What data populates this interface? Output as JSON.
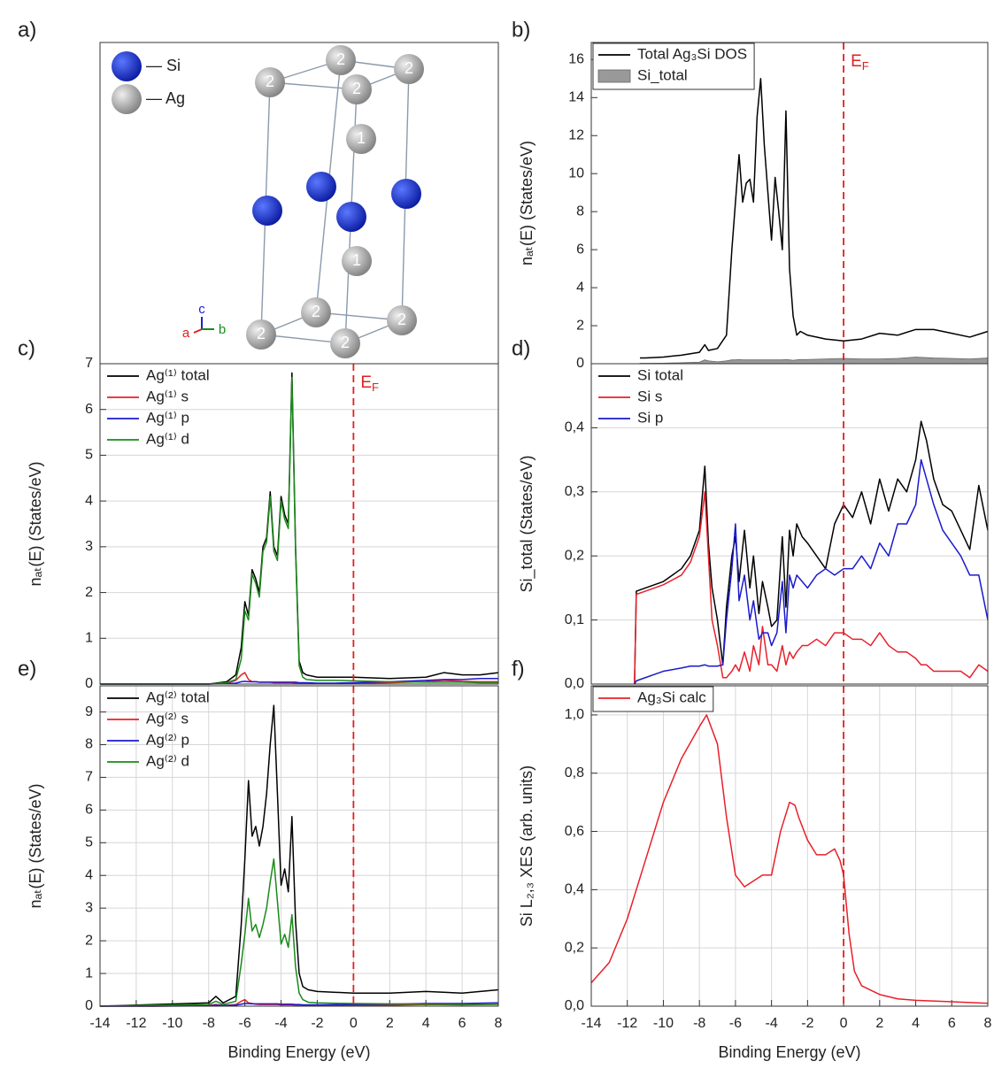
{
  "structure": {
    "label": "a)",
    "legend": [
      "— Si",
      "— Ag"
    ],
    "atom_labels": [
      "2",
      "2",
      "2",
      "2",
      "1",
      "1",
      "2",
      "2",
      "2",
      "2"
    ],
    "axes": [
      "c",
      "a",
      "b"
    ]
  },
  "chart_data": [
    {
      "type": "line",
      "panel_label": "b)",
      "ylabel": "nₐₜ(E) (States/eV)",
      "xlim": [
        -14,
        8
      ],
      "ylim": [
        0,
        16.9
      ],
      "yticks": [
        0,
        2,
        4,
        6,
        8,
        10,
        12,
        14,
        16
      ],
      "grid": false,
      "vline": {
        "x": 0,
        "color": "#e02020"
      },
      "annotation": {
        "text": "E",
        "subscript": "F",
        "color": "#e02020"
      },
      "legend": {
        "corner": "top-left",
        "frame": true
      },
      "x": [
        -11.3,
        -11,
        -10,
        -9,
        -8,
        -7.7,
        -7.5,
        -7,
        -6.5,
        -6.2,
        -6,
        -5.8,
        -5.6,
        -5.4,
        -5.2,
        -5,
        -4.8,
        -4.6,
        -4.4,
        -4.2,
        -4,
        -3.8,
        -3.6,
        -3.4,
        -3.2,
        -3,
        -2.8,
        -2.6,
        -2.4,
        -2,
        -1,
        0,
        1,
        2,
        3,
        4,
        5,
        6,
        7,
        8
      ],
      "series": [
        {
          "name": "Total Ag₃Si DOS",
          "color": "#000000",
          "values": [
            0.3,
            0.3,
            0.35,
            0.45,
            0.6,
            1.0,
            0.7,
            0.8,
            1.5,
            6,
            8.5,
            11,
            8.5,
            9.5,
            9.7,
            8.5,
            13,
            15,
            11.5,
            9,
            6.5,
            9.8,
            8,
            6,
            13.3,
            5,
            2.5,
            1.5,
            1.7,
            1.5,
            1.3,
            1.2,
            1.3,
            1.6,
            1.5,
            1.8,
            1.8,
            1.6,
            1.4,
            1.7
          ]
        },
        {
          "name": "Si_total",
          "color": "#999999",
          "fill": true,
          "values": [
            0.02,
            0.02,
            0.03,
            0.05,
            0.08,
            0.2,
            0.15,
            0.1,
            0.15,
            0.2,
            0.2,
            0.22,
            0.2,
            0.2,
            0.2,
            0.2,
            0.2,
            0.2,
            0.2,
            0.2,
            0.2,
            0.2,
            0.2,
            0.2,
            0.22,
            0.2,
            0.18,
            0.2,
            0.22,
            0.22,
            0.25,
            0.28,
            0.25,
            0.25,
            0.28,
            0.35,
            0.3,
            0.28,
            0.25,
            0.3
          ]
        }
      ]
    },
    {
      "type": "line",
      "panel_label": "c)",
      "ylabel": "nₐₜ(E) (States/eV)",
      "xlim": [
        -14,
        8
      ],
      "ylim": [
        0,
        7
      ],
      "yticks": [
        0,
        1,
        2,
        3,
        4,
        5,
        6,
        7
      ],
      "grid": true,
      "vline": {
        "x": 0,
        "color": "#e02020"
      },
      "annotation": {
        "text": "E",
        "subscript": "F",
        "color": "#e02020"
      },
      "legend": {
        "corner": "top-left",
        "frame": false
      },
      "x": [
        -14,
        -8,
        -7,
        -6.5,
        -6.2,
        -6,
        -5.8,
        -5.6,
        -5.4,
        -5.2,
        -5,
        -4.8,
        -4.6,
        -4.4,
        -4.2,
        -4,
        -3.8,
        -3.6,
        -3.4,
        -3.2,
        -3,
        -2.8,
        -2.6,
        -2,
        -1,
        0,
        2,
        4,
        5,
        6,
        7,
        8
      ],
      "series": [
        {
          "name": "Ag⁽¹⁾ total",
          "color": "#000000",
          "values": [
            0,
            0,
            0.05,
            0.2,
            0.8,
            1.8,
            1.5,
            2.5,
            2.3,
            2,
            3,
            3.2,
            4.2,
            3,
            2.8,
            4.1,
            3.7,
            3.5,
            6.8,
            3,
            0.5,
            0.25,
            0.2,
            0.15,
            0.15,
            0.15,
            0.12,
            0.15,
            0.25,
            0.2,
            0.2,
            0.25
          ]
        },
        {
          "name": "Ag⁽¹⁾ s",
          "color": "#e8202a",
          "values": [
            0,
            0,
            0.02,
            0.08,
            0.2,
            0.25,
            0.1,
            0.05,
            0.05,
            0.04,
            0.04,
            0.04,
            0.04,
            0.03,
            0.03,
            0.03,
            0.03,
            0.03,
            0.03,
            0.02,
            0.02,
            0.02,
            0.02,
            0.01,
            0.01,
            0.02,
            0.03,
            0.05,
            0.08,
            0.06,
            0.05,
            0.05
          ]
        },
        {
          "name": "Ag⁽¹⁾ p",
          "color": "#1a1acc",
          "values": [
            0,
            0,
            0.01,
            0.02,
            0.05,
            0.06,
            0.05,
            0.05,
            0.05,
            0.04,
            0.04,
            0.04,
            0.04,
            0.04,
            0.04,
            0.04,
            0.04,
            0.04,
            0.04,
            0.04,
            0.03,
            0.03,
            0.03,
            0.02,
            0.02,
            0.03,
            0.05,
            0.08,
            0.1,
            0.1,
            0.12,
            0.12
          ]
        },
        {
          "name": "Ag⁽¹⁾ d",
          "color": "#1a8a1a",
          "values": [
            0,
            0,
            0.03,
            0.1,
            0.55,
            1.6,
            1.4,
            2.4,
            2.2,
            1.9,
            2.9,
            3.1,
            4.1,
            2.9,
            2.7,
            4,
            3.6,
            3.4,
            6.7,
            2.9,
            0.4,
            0.15,
            0.1,
            0.08,
            0.08,
            0.07,
            0.05,
            0.04,
            0.04,
            0.04,
            0.03,
            0.03
          ]
        }
      ]
    },
    {
      "type": "line",
      "panel_label": "d)",
      "ylabel": "Si_total (States/eV)",
      "xlim": [
        -14,
        8
      ],
      "ylim": [
        0,
        0.5
      ],
      "yticks": [
        {
          "value": 0,
          "label": "0,0"
        },
        {
          "value": 0.1,
          "label": "0,1"
        },
        {
          "value": 0.2,
          "label": "0,2"
        },
        {
          "value": 0.3,
          "label": "0,3"
        },
        {
          "value": 0.4,
          "label": "0,4"
        }
      ],
      "grid": true,
      "vline": {
        "x": 0,
        "color": "#e02020"
      },
      "legend": {
        "corner": "top-left",
        "frame": false
      },
      "x": [
        -11.6,
        -11.5,
        -11,
        -10,
        -9,
        -8.5,
        -8,
        -7.7,
        -7.5,
        -7.3,
        -7,
        -6.7,
        -6.5,
        -6.2,
        -6,
        -5.8,
        -5.5,
        -5.2,
        -5,
        -4.7,
        -4.5,
        -4.2,
        -4,
        -3.7,
        -3.4,
        -3.2,
        -3,
        -2.8,
        -2.6,
        -2.3,
        -2,
        -1.5,
        -1,
        -0.5,
        0,
        0.5,
        1,
        1.5,
        2,
        2.5,
        3,
        3.5,
        4,
        4.3,
        4.6,
        5,
        5.5,
        6,
        6.5,
        7,
        7.5,
        8
      ],
      "series": [
        {
          "name": "Si total",
          "color": "#000000",
          "values": [
            0,
            0.145,
            0.15,
            0.16,
            0.18,
            0.2,
            0.24,
            0.34,
            0.22,
            0.15,
            0.1,
            0.03,
            0.12,
            0.2,
            0.23,
            0.16,
            0.24,
            0.15,
            0.2,
            0.11,
            0.16,
            0.12,
            0.09,
            0.1,
            0.23,
            0.12,
            0.24,
            0.2,
            0.25,
            0.23,
            0.22,
            0.2,
            0.18,
            0.25,
            0.28,
            0.26,
            0.3,
            0.25,
            0.32,
            0.27,
            0.32,
            0.3,
            0.35,
            0.41,
            0.38,
            0.32,
            0.28,
            0.27,
            0.24,
            0.21,
            0.31,
            0.24
          ]
        },
        {
          "name": "Si s",
          "color": "#e8202a",
          "values": [
            0,
            0.14,
            0.145,
            0.155,
            0.17,
            0.19,
            0.23,
            0.3,
            0.2,
            0.1,
            0.06,
            0.01,
            0.01,
            0.02,
            0.03,
            0.02,
            0.05,
            0.02,
            0.06,
            0.03,
            0.09,
            0.03,
            0.03,
            0.02,
            0.06,
            0.03,
            0.05,
            0.04,
            0.05,
            0.06,
            0.06,
            0.07,
            0.06,
            0.08,
            0.08,
            0.07,
            0.07,
            0.06,
            0.08,
            0.06,
            0.05,
            0.05,
            0.04,
            0.03,
            0.03,
            0.02,
            0.02,
            0.02,
            0.02,
            0.01,
            0.03,
            0.02
          ]
        },
        {
          "name": "Si p",
          "color": "#1a1acc",
          "values": [
            0,
            0.005,
            0.01,
            0.02,
            0.025,
            0.028,
            0.028,
            0.03,
            0.028,
            0.028,
            0.028,
            0.03,
            0.1,
            0.18,
            0.25,
            0.13,
            0.17,
            0.1,
            0.13,
            0.07,
            0.08,
            0.08,
            0.06,
            0.08,
            0.16,
            0.08,
            0.17,
            0.15,
            0.17,
            0.16,
            0.15,
            0.17,
            0.18,
            0.17,
            0.18,
            0.18,
            0.2,
            0.18,
            0.22,
            0.2,
            0.25,
            0.25,
            0.28,
            0.35,
            0.32,
            0.28,
            0.24,
            0.22,
            0.2,
            0.17,
            0.17,
            0.1
          ]
        }
      ]
    },
    {
      "type": "line",
      "panel_label": "e)",
      "ylabel": "nₐₜ(E) (States/eV)",
      "xlabel": "Binding Energy (eV)",
      "xlim": [
        -14,
        8
      ],
      "xticks": [
        -14,
        -12,
        -10,
        -8,
        -6,
        -4,
        -2,
        0,
        2,
        4,
        6,
        8
      ],
      "ylim": [
        0,
        9.8
      ],
      "yticks": [
        0,
        1,
        2,
        3,
        4,
        5,
        6,
        7,
        8,
        9
      ],
      "grid": true,
      "vline": {
        "x": 0,
        "color": "#e02020"
      },
      "legend": {
        "corner": "top-left",
        "frame": false
      },
      "x": [
        -14,
        -11,
        -8,
        -7.6,
        -7.2,
        -6.5,
        -6.2,
        -6,
        -5.8,
        -5.6,
        -5.4,
        -5.2,
        -5,
        -4.8,
        -4.6,
        -4.4,
        -4.2,
        -4,
        -3.8,
        -3.6,
        -3.4,
        -3.2,
        -3,
        -2.8,
        -2.5,
        -2,
        0,
        2,
        4,
        6,
        8
      ],
      "series": [
        {
          "name": "Ag⁽²⁾ total",
          "color": "#000000",
          "values": [
            0,
            0.05,
            0.1,
            0.3,
            0.1,
            0.3,
            2.5,
            4.5,
            6.9,
            5.2,
            5.5,
            4.9,
            5.5,
            6.5,
            8,
            9.2,
            6.5,
            3.7,
            4.2,
            3.5,
            5.8,
            2.6,
            1,
            0.6,
            0.5,
            0.45,
            0.4,
            0.4,
            0.45,
            0.4,
            0.5
          ]
        },
        {
          "name": "Ag⁽²⁾ s",
          "color": "#e8202a",
          "values": [
            0,
            0,
            0.02,
            0.05,
            0.02,
            0.05,
            0.15,
            0.2,
            0.1,
            0.08,
            0.06,
            0.05,
            0.05,
            0.05,
            0.05,
            0.05,
            0.05,
            0.04,
            0.04,
            0.04,
            0.04,
            0.03,
            0.03,
            0.02,
            0.02,
            0.02,
            0.02,
            0.03,
            0.05,
            0.04,
            0.05
          ]
        },
        {
          "name": "Ag⁽²⁾ p",
          "color": "#1a1acc",
          "values": [
            0,
            0,
            0.01,
            0.03,
            0.02,
            0.03,
            0.06,
            0.08,
            0.08,
            0.07,
            0.07,
            0.07,
            0.07,
            0.07,
            0.07,
            0.07,
            0.07,
            0.06,
            0.06,
            0.06,
            0.06,
            0.05,
            0.05,
            0.04,
            0.04,
            0.04,
            0.05,
            0.06,
            0.08,
            0.08,
            0.1
          ]
        },
        {
          "name": "Ag⁽²⁾ d",
          "color": "#1a8a1a",
          "values": [
            0,
            0.03,
            0.05,
            0.15,
            0.05,
            0.15,
            1.3,
            2.2,
            3.3,
            2.3,
            2.5,
            2.1,
            2.5,
            3,
            3.8,
            4.5,
            3.2,
            1.9,
            2.2,
            1.8,
            2.8,
            1.2,
            0.4,
            0.2,
            0.12,
            0.1,
            0.08,
            0.07,
            0.06,
            0.05,
            0.05
          ]
        }
      ]
    },
    {
      "type": "line",
      "panel_label": "f)",
      "ylabel": "Si L₂,₃ XES (arb. units)",
      "xlabel": "Binding Energy (eV)",
      "xlim": [
        -14,
        8
      ],
      "xticks": [
        -14,
        -12,
        -10,
        -8,
        -6,
        -4,
        -2,
        0,
        2,
        4,
        6,
        8
      ],
      "ylim": [
        0,
        1.1
      ],
      "yticks": [
        {
          "value": 0,
          "label": "0,0"
        },
        {
          "value": 0.2,
          "label": "0,2"
        },
        {
          "value": 0.4,
          "label": "0,4"
        },
        {
          "value": 0.6,
          "label": "0,6"
        },
        {
          "value": 0.8,
          "label": "0,8"
        },
        {
          "value": 1.0,
          "label": "1,0"
        }
      ],
      "grid": true,
      "vline": {
        "x": 0,
        "color": "#e02020"
      },
      "legend": {
        "corner": "top-left",
        "frame": true
      },
      "x": [
        -14,
        -13,
        -12,
        -11,
        -10,
        -9,
        -8,
        -7.6,
        -7,
        -6.5,
        -6,
        -5.5,
        -5,
        -4.5,
        -4,
        -3.5,
        -3,
        -2.7,
        -2.5,
        -2,
        -1.5,
        -1,
        -0.5,
        -0.2,
        0,
        0.3,
        0.6,
        1,
        2,
        3,
        4,
        6,
        8
      ],
      "series": [
        {
          "name": "Ag₃Si calc",
          "color": "#e8202a",
          "values": [
            0.08,
            0.15,
            0.3,
            0.5,
            0.7,
            0.85,
            0.96,
            1.0,
            0.9,
            0.65,
            0.45,
            0.41,
            0.43,
            0.45,
            0.45,
            0.6,
            0.7,
            0.69,
            0.65,
            0.57,
            0.52,
            0.52,
            0.54,
            0.5,
            0.45,
            0.25,
            0.12,
            0.07,
            0.04,
            0.025,
            0.02,
            0.015,
            0.01
          ]
        }
      ]
    }
  ]
}
